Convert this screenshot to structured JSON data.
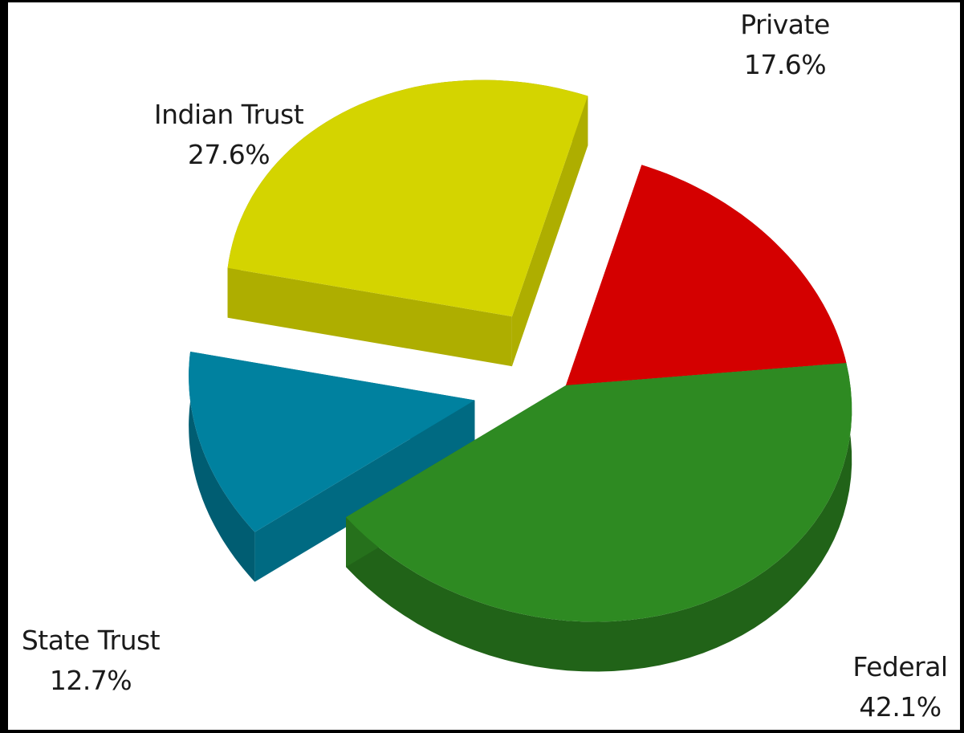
{
  "chart_data": {
    "type": "pie",
    "title": "",
    "slices": [
      {
        "label": "Private",
        "value": 17.6,
        "value_label": "17.6%",
        "color": "#d40000",
        "exploded": false
      },
      {
        "label": "Federal",
        "value": 42.1,
        "value_label": "42.1%",
        "color": "#2e8a22",
        "exploded": false
      },
      {
        "label": "State Trust",
        "value": 12.7,
        "value_label": "12.7%",
        "color": "#00819f",
        "exploded": true
      },
      {
        "label": "Indian Trust",
        "value": 27.6,
        "value_label": "27.6%",
        "color": "#d4d400",
        "exploded": true
      }
    ],
    "legend": "none",
    "style": "3d-exploded"
  }
}
